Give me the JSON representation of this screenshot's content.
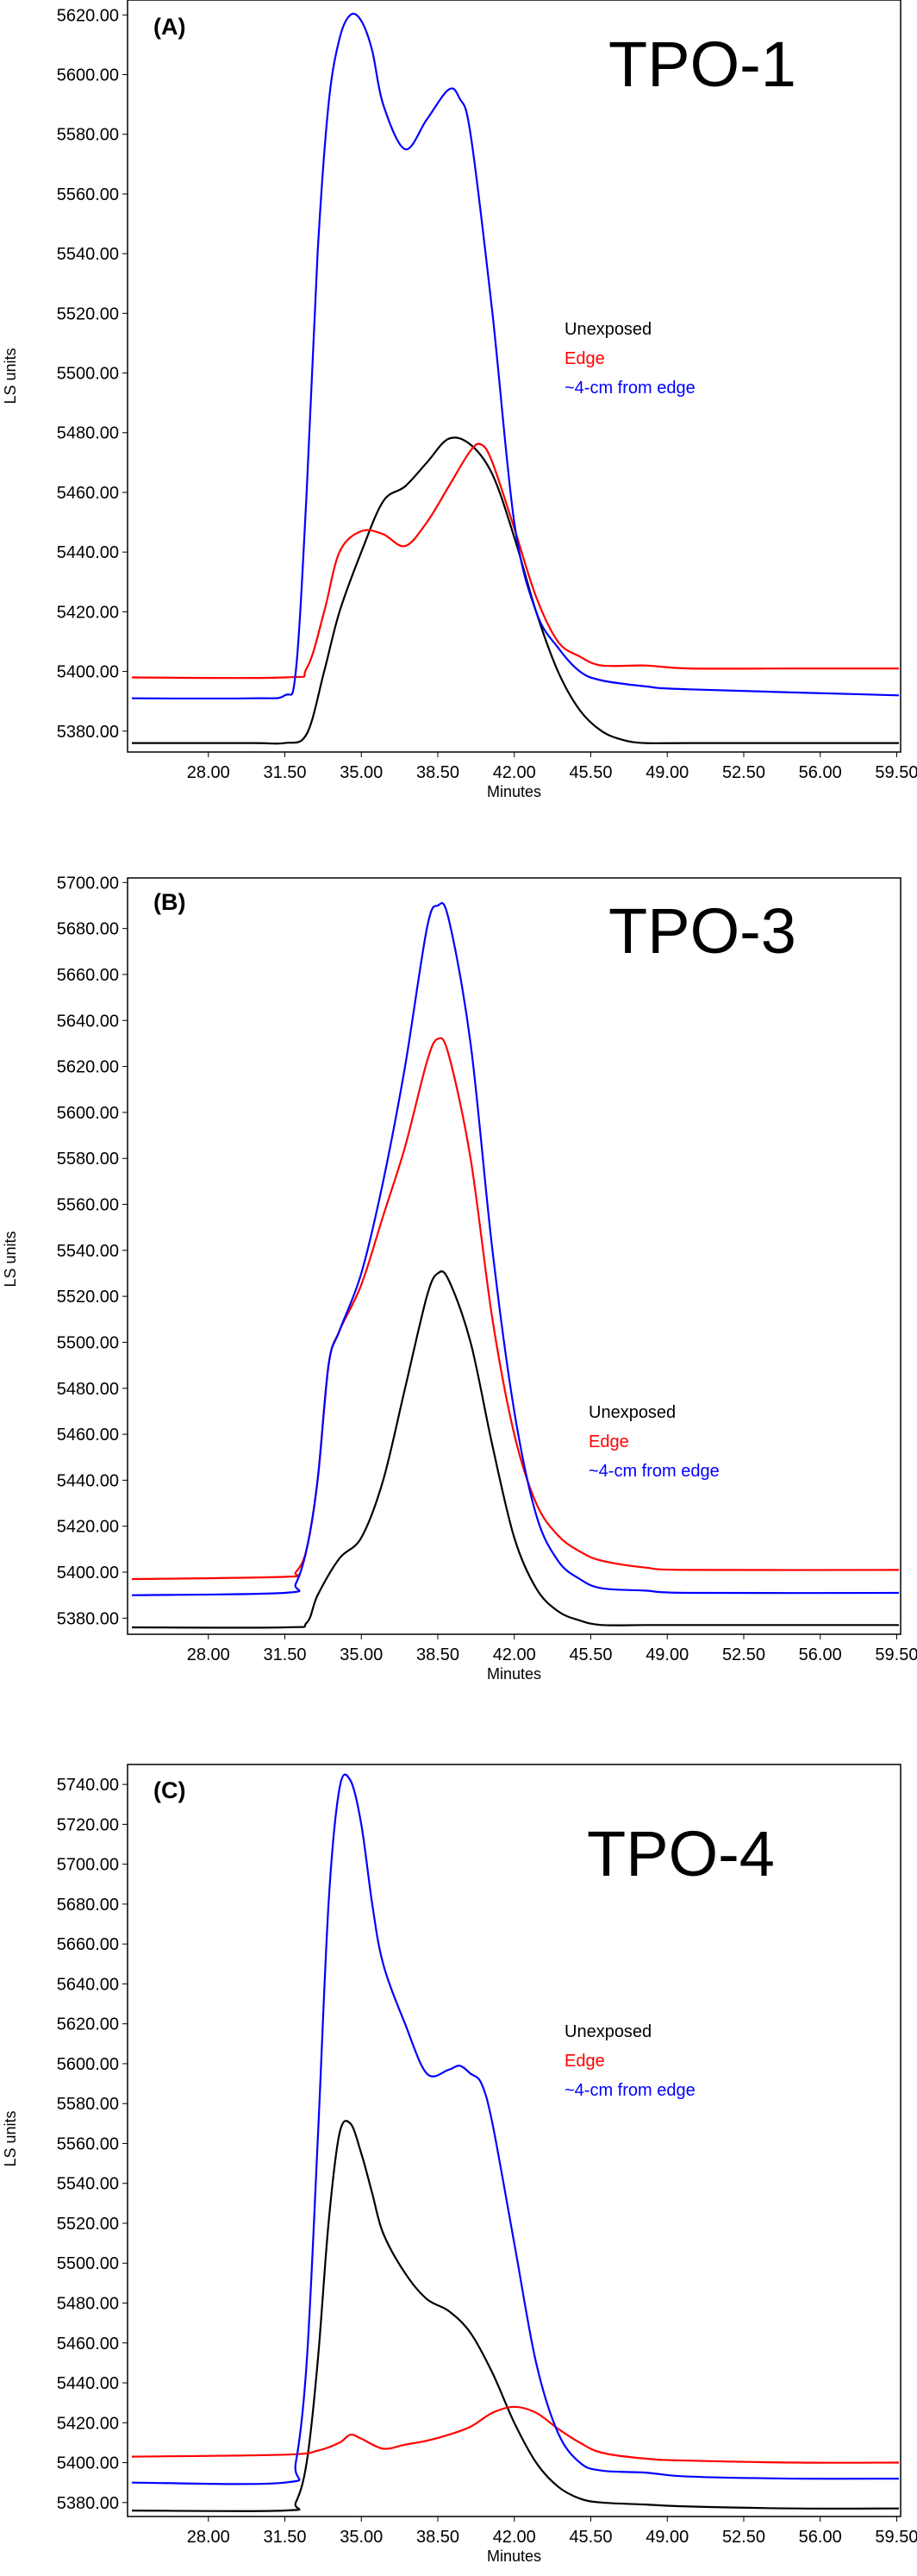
{
  "chart_data": [
    {
      "type": "line",
      "panel_label": "(A)",
      "title": "TPO-1",
      "xlabel": "Minutes",
      "ylabel": "LS units",
      "xlim": [
        24.5,
        59.6
      ],
      "ylim": [
        5373,
        5625
      ],
      "xticks": [
        "28.00",
        "31.50",
        "35.00",
        "38.50",
        "42.00",
        "45.50",
        "49.00",
        "52.50",
        "56.00",
        "59.50"
      ],
      "yticks": [
        "5380.00",
        "5400.00",
        "5420.00",
        "5440.00",
        "5460.00",
        "5480.00",
        "5500.00",
        "5520.00",
        "5540.00",
        "5560.00",
        "5580.00",
        "5600.00",
        "5620.00"
      ],
      "legend_position": "center-right",
      "series": [
        {
          "name": "Unexposed",
          "color": "#000000",
          "x": [
            24.5,
            30,
            31.5,
            32.5,
            33.3,
            34,
            35,
            36,
            37,
            38,
            39,
            40,
            41,
            42,
            43,
            44,
            45,
            46,
            47,
            48,
            50,
            55,
            59.6
          ],
          "values": [
            5376,
            5376,
            5376,
            5379,
            5400,
            5420,
            5440,
            5457,
            5462,
            5470,
            5478,
            5476,
            5466,
            5445,
            5420,
            5400,
            5387,
            5380,
            5377,
            5376,
            5376,
            5376,
            5376
          ]
        },
        {
          "name": "Edge",
          "color": "#ff0000",
          "x": [
            24.5,
            31.5,
            32.5,
            33.3,
            34,
            35,
            36,
            37,
            38,
            39,
            40,
            40.5,
            41,
            42,
            43,
            44,
            45,
            46,
            48,
            50,
            55,
            59.6
          ],
          "values": [
            5398,
            5398,
            5401,
            5420,
            5440,
            5447,
            5446,
            5442,
            5450,
            5462,
            5474,
            5476,
            5470,
            5448,
            5425,
            5410,
            5405,
            5402,
            5402,
            5401,
            5401,
            5401
          ]
        },
        {
          "name": "~4-cm from edge",
          "color": "#0000ff",
          "x": [
            24.5,
            30,
            31.5,
            32,
            32.5,
            33,
            33.5,
            34,
            34.5,
            35,
            35.5,
            36,
            37,
            38,
            39,
            39.5,
            40,
            41,
            42,
            43,
            44,
            45,
            46,
            48,
            50,
            59.6
          ],
          "values": [
            5391,
            5391,
            5392,
            5400,
            5460,
            5540,
            5590,
            5612,
            5620,
            5618,
            5608,
            5590,
            5575,
            5585,
            5595,
            5592,
            5580,
            5520,
            5450,
            5420,
            5408,
            5400,
            5397,
            5395,
            5394,
            5392
          ]
        }
      ]
    },
    {
      "type": "line",
      "panel_label": "(B)",
      "title": "TPO-3",
      "xlabel": "Minutes",
      "ylabel": "LS units",
      "xlim": [
        24.5,
        59.6
      ],
      "ylim": [
        5373,
        5702
      ],
      "xticks": [
        "28.00",
        "31.50",
        "35.00",
        "38.50",
        "42.00",
        "45.50",
        "49.00",
        "52.50",
        "56.00",
        "59.50"
      ],
      "yticks": [
        "5380.00",
        "5400.00",
        "5420.00",
        "5440.00",
        "5460.00",
        "5480.00",
        "5500.00",
        "5520.00",
        "5540.00",
        "5560.00",
        "5580.00",
        "5600.00",
        "5620.00",
        "5640.00",
        "5660.00",
        "5680.00",
        "5700.00"
      ],
      "legend_position": "center-right",
      "series": [
        {
          "name": "Unexposed",
          "color": "#000000",
          "x": [
            24.5,
            31.5,
            32.5,
            33,
            34,
            35,
            36,
            37,
            38,
            38.5,
            39,
            40,
            41,
            42,
            43,
            44,
            45,
            46,
            48,
            50,
            59.6
          ],
          "values": [
            5376,
            5376,
            5378,
            5390,
            5406,
            5415,
            5440,
            5480,
            5520,
            5530,
            5527,
            5500,
            5455,
            5415,
            5393,
            5383,
            5379,
            5377,
            5377,
            5377,
            5377
          ]
        },
        {
          "name": "Edge",
          "color": "#ff0000",
          "x": [
            24.5,
            31.5,
            32,
            32.5,
            33,
            33.5,
            34,
            35,
            36,
            37,
            38,
            38.5,
            39,
            40,
            41,
            42,
            43,
            44,
            45,
            46,
            48,
            50,
            59.6
          ],
          "values": [
            5397,
            5398,
            5400,
            5410,
            5440,
            5490,
            5505,
            5525,
            5555,
            5585,
            5622,
            5632,
            5625,
            5580,
            5510,
            5460,
            5430,
            5416,
            5409,
            5405,
            5402,
            5401,
            5401
          ]
        },
        {
          "name": "~4-cm from edge",
          "color": "#0000ff",
          "x": [
            24.5,
            31.5,
            32,
            32.5,
            33,
            33.5,
            34,
            35,
            36,
            37,
            38,
            38.5,
            39,
            40,
            41,
            42,
            43,
            44,
            45,
            46,
            48,
            50,
            59.6
          ],
          "values": [
            5390,
            5391,
            5395,
            5410,
            5440,
            5490,
            5505,
            5530,
            5570,
            5620,
            5680,
            5690,
            5684,
            5630,
            5540,
            5470,
            5425,
            5405,
            5397,
            5393,
            5392,
            5391,
            5391
          ]
        }
      ],
      "legend": [
        "Unexposed",
        "Edge",
        "~4-cm from edge"
      ]
    },
    {
      "type": "line",
      "panel_label": "(C)",
      "title": "TPO-4",
      "xlabel": "Minutes",
      "ylabel": "LS units",
      "xlim": [
        24.5,
        59.6
      ],
      "ylim": [
        5373,
        5750
      ],
      "xticks": [
        "28.00",
        "31.50",
        "35.00",
        "38.50",
        "42.00",
        "45.50",
        "49.00",
        "52.50",
        "56.00",
        "59.50"
      ],
      "yticks": [
        "5380.00",
        "5400.00",
        "5420.00",
        "5440.00",
        "5460.00",
        "5480.00",
        "5500.00",
        "5520.00",
        "5540.00",
        "5560.00",
        "5580.00",
        "5600.00",
        "5620.00",
        "5640.00",
        "5660.00",
        "5680.00",
        "5700.00",
        "5720.00",
        "5740.00"
      ],
      "legend_position": "center-right",
      "series": [
        {
          "name": "Unexposed",
          "color": "#000000",
          "x": [
            24.5,
            31.5,
            32,
            32.5,
            33,
            33.5,
            34,
            34.5,
            35,
            35.5,
            36,
            37,
            38,
            39,
            40,
            41,
            42,
            43,
            44,
            45,
            46,
            48,
            50,
            55,
            59.6
          ],
          "values": [
            5376,
            5376,
            5380,
            5400,
            5450,
            5520,
            5565,
            5570,
            5555,
            5535,
            5515,
            5495,
            5482,
            5476,
            5465,
            5445,
            5420,
            5400,
            5388,
            5382,
            5380,
            5379,
            5378,
            5377,
            5377
          ]
        },
        {
          "name": "Edge",
          "color": "#ff0000",
          "x": [
            24.5,
            31.5,
            33,
            34,
            34.5,
            35,
            36,
            37,
            38,
            39,
            40,
            41,
            42,
            43,
            44,
            45,
            46,
            48,
            50,
            55,
            59.6
          ],
          "values": [
            5403,
            5404,
            5406,
            5410,
            5414,
            5412,
            5407,
            5409,
            5411,
            5414,
            5418,
            5425,
            5428,
            5425,
            5417,
            5410,
            5405,
            5402,
            5401,
            5400,
            5400
          ]
        },
        {
          "name": "~4-cm from edge",
          "color": "#0000ff",
          "x": [
            24.5,
            31.5,
            32,
            32.5,
            33,
            33.5,
            34,
            34.5,
            35,
            35.5,
            36,
            37,
            38,
            39,
            39.5,
            40,
            40.5,
            41,
            42,
            43,
            44,
            45,
            46,
            48,
            50,
            55,
            59.6
          ],
          "values": [
            5390,
            5390,
            5400,
            5450,
            5560,
            5680,
            5738,
            5742,
            5720,
            5680,
            5650,
            5620,
            5595,
            5597,
            5599,
            5595,
            5590,
            5570,
            5510,
            5450,
            5415,
            5400,
            5396,
            5395,
            5393,
            5392,
            5392
          ]
        }
      ]
    }
  ]
}
